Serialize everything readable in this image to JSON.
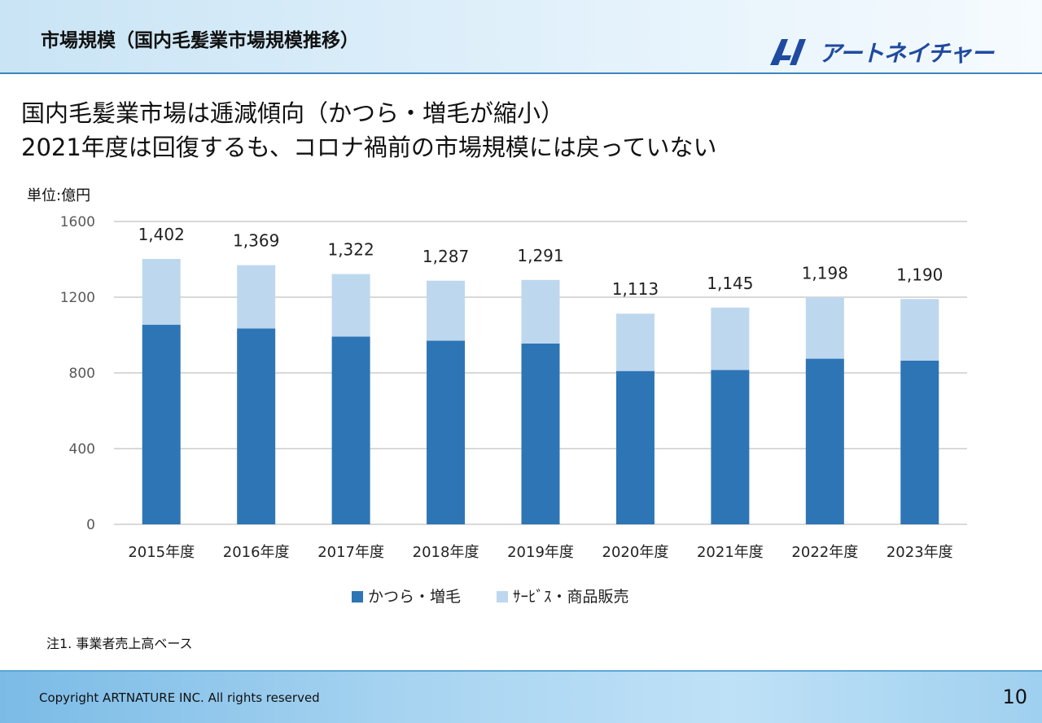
{
  "slide": {
    "title": "市場規模（国内毛髪業市場規模推移）",
    "logo_text": "アートネイチャー",
    "headline_line1": "国内毛髪業市場は逓減傾向（かつら・増毛が縮小）",
    "headline_line2": "2021年度は回復するも、コロナ禍前の市場規模には戻っていない",
    "unit_label": "単位:億円",
    "note": "注1. 事業者売上高ベース",
    "copyright": "Copyright ARTNATURE INC. All rights reserved",
    "page_number": "10"
  },
  "colors": {
    "series_dark": "#2e75b6",
    "series_light": "#bdd7ee",
    "grid": "#d9d9d9",
    "axis_text": "#595959",
    "logo": "#1f4aa0"
  },
  "chart_data": {
    "type": "bar",
    "stacked": true,
    "categories": [
      "2015年度",
      "2016年度",
      "2017年度",
      "2018年度",
      "2019年度",
      "2020年度",
      "2021年度",
      "2022年度",
      "2023年度"
    ],
    "series": [
      {
        "name": "かつら・増毛",
        "values": [
          1055,
          1035,
          992,
          970,
          955,
          810,
          815,
          875,
          865
        ]
      },
      {
        "name": "ｻｰﾋﾞｽ・商品販売",
        "values": [
          347,
          334,
          330,
          317,
          336,
          303,
          330,
          323,
          325
        ]
      }
    ],
    "totals": [
      1402,
      1369,
      1322,
      1287,
      1291,
      1113,
      1145,
      1198,
      1190
    ],
    "total_labels": [
      "1,402",
      "1,369",
      "1,322",
      "1,287",
      "1,291",
      "1,113",
      "1,145",
      "1,198",
      "1,190"
    ],
    "ylim": [
      0,
      1600
    ],
    "yticks": [
      0,
      400,
      800,
      1200,
      1600
    ],
    "grid": true,
    "legend_position": "bottom"
  }
}
